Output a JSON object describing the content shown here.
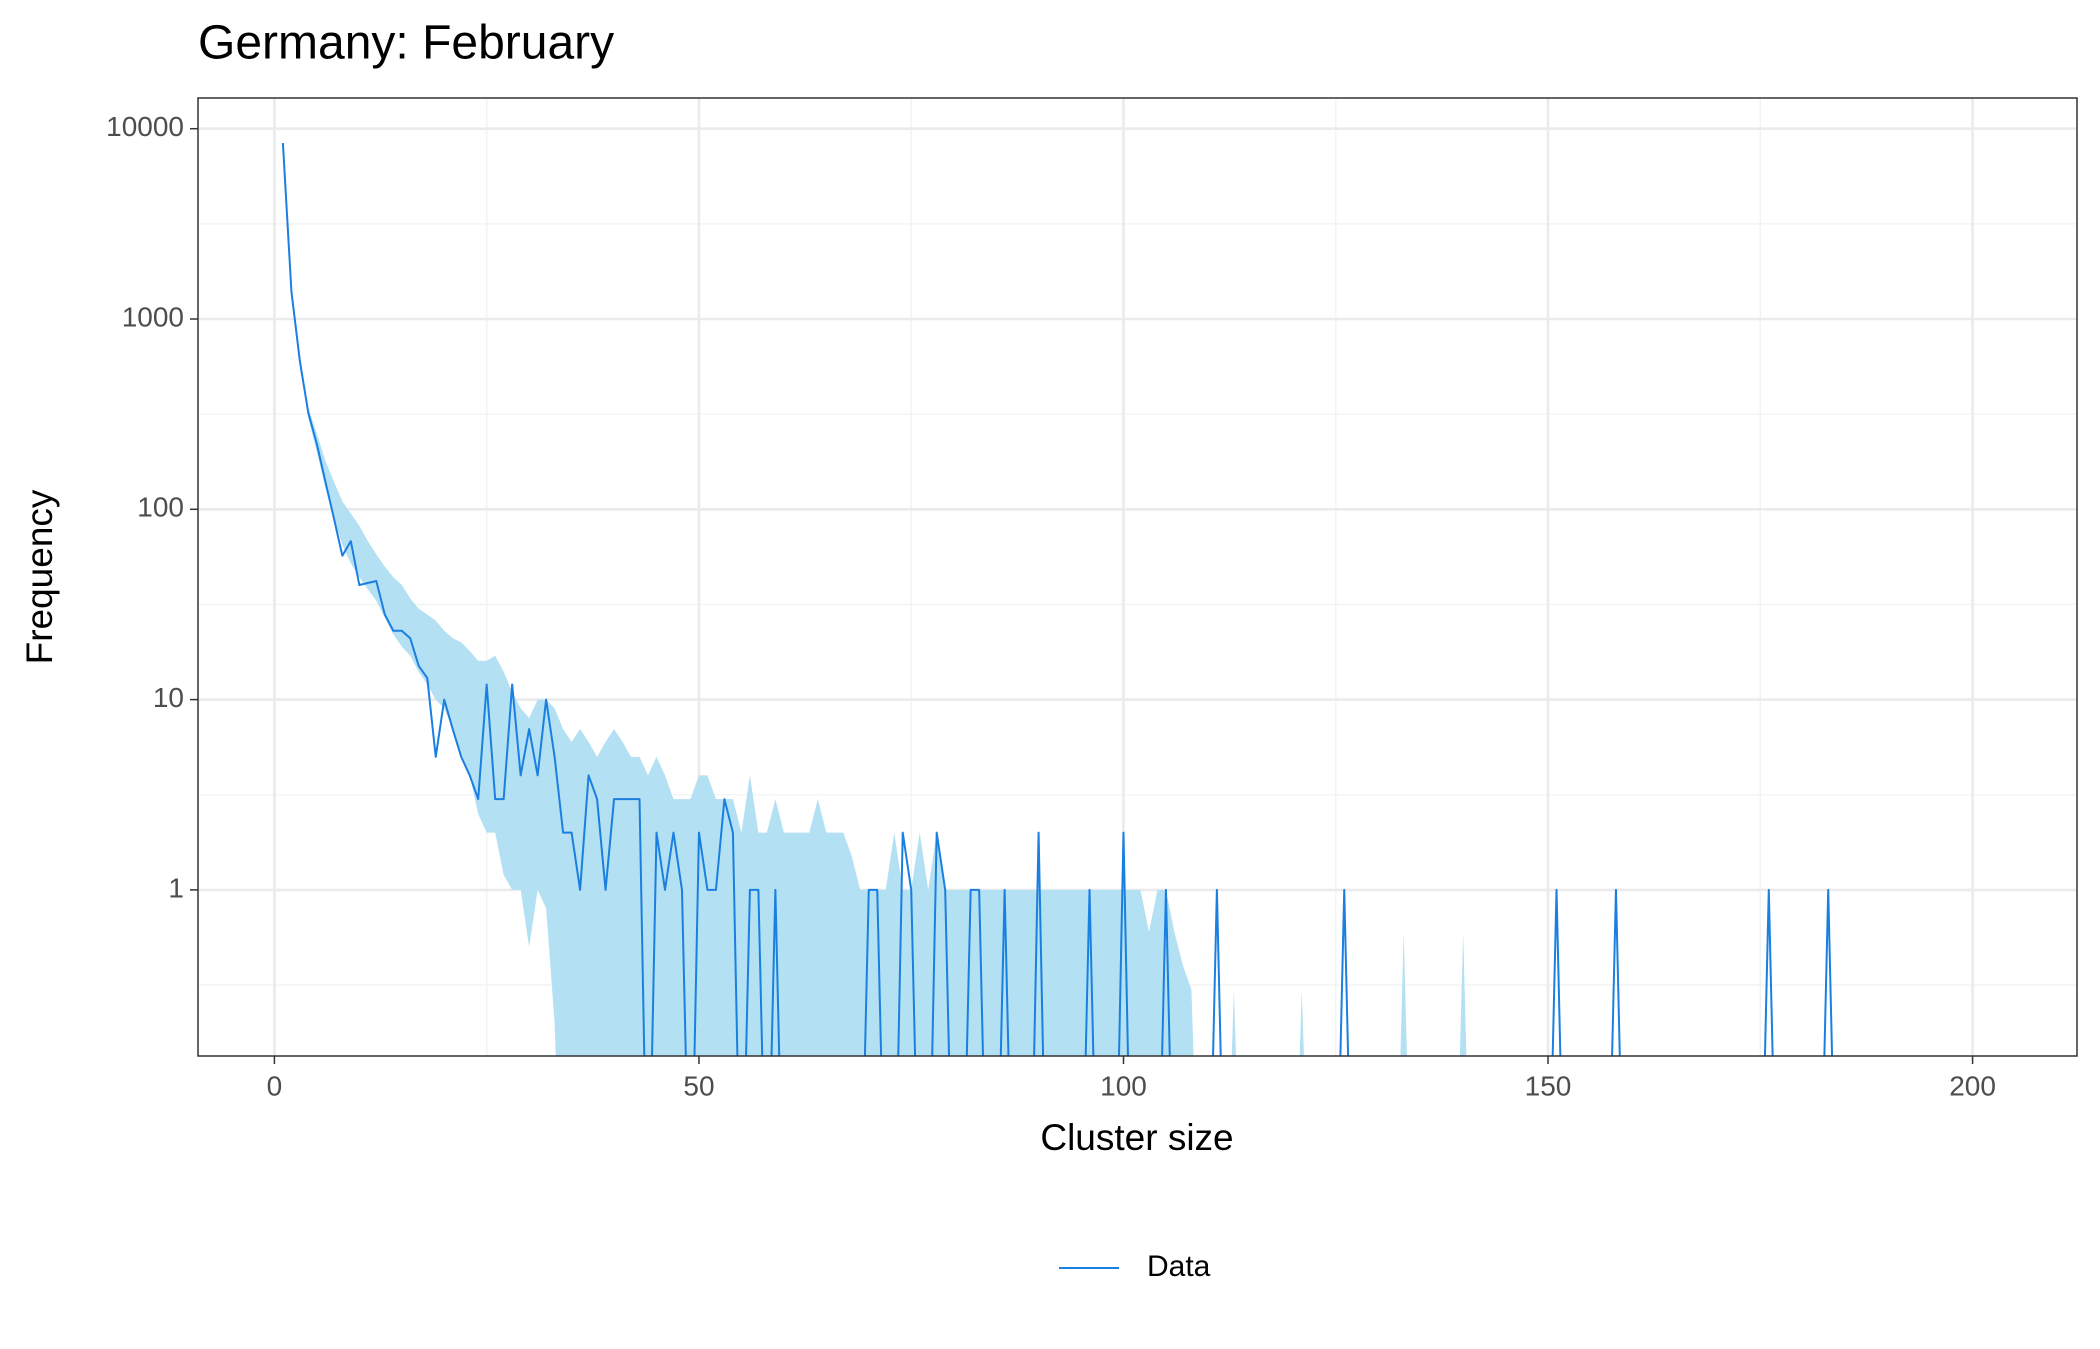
{
  "chart_data": {
    "type": "line",
    "title": "Germany: February",
    "x_label": "Cluster size",
    "y_label": "Frequency",
    "log_y": true,
    "grid": true,
    "legend_position": "bottom",
    "xlim": [
      -9,
      212.3
    ],
    "xticks": [
      0,
      50,
      100,
      150,
      200
    ],
    "ylim": [
      0.134,
      14500
    ],
    "yticks": [
      1,
      10,
      100,
      1000,
      10000
    ],
    "x": [
      1,
      2,
      3,
      4,
      5,
      6,
      7,
      8,
      9,
      10,
      11,
      12,
      13,
      14,
      15,
      16,
      17,
      18,
      19,
      20,
      21,
      22,
      23,
      24,
      25,
      26,
      27,
      28,
      29,
      30,
      31,
      32,
      33,
      34,
      35,
      36,
      37,
      38,
      39,
      40,
      41,
      42,
      43,
      44,
      45,
      46,
      47,
      48,
      49,
      50,
      51,
      52,
      53,
      54,
      55,
      56,
      57,
      58,
      59,
      60,
      61,
      62,
      63,
      64,
      65,
      66,
      67,
      68,
      69,
      70,
      71,
      72,
      73,
      74,
      75,
      76,
      77,
      78,
      79,
      80,
      81,
      82,
      83,
      84,
      85,
      86,
      87,
      88,
      89,
      90,
      91,
      92,
      93,
      94,
      95,
      96,
      97,
      98,
      99,
      100,
      101,
      102,
      103,
      104,
      105,
      106,
      107,
      108,
      109,
      110,
      111,
      112,
      113,
      114,
      115,
      116,
      117,
      118,
      119,
      120,
      121,
      122,
      123,
      124,
      125,
      126,
      127,
      128,
      129,
      130,
      131,
      132,
      133,
      134,
      135,
      136,
      137,
      138,
      139,
      140,
      141,
      142,
      143,
      144,
      145,
      146,
      147,
      148,
      149,
      150,
      151,
      152,
      153,
      154,
      155,
      156,
      157,
      158,
      159,
      160,
      161,
      162,
      163,
      164,
      165,
      166,
      167,
      168,
      169,
      170,
      171,
      172,
      173,
      174,
      175,
      176,
      177,
      178,
      179,
      180,
      181,
      182,
      183,
      184,
      185
    ],
    "series": [
      {
        "name": "Data",
        "color": "#1a7fe0",
        "values": [
          8400,
          1400,
          600,
          320,
          220,
          140,
          90,
          57,
          68,
          40,
          41,
          42,
          28,
          23,
          23,
          21,
          15,
          13,
          5,
          10,
          7,
          5,
          4,
          3,
          12,
          3,
          3,
          12,
          4,
          7,
          4,
          10,
          5,
          2,
          2,
          1,
          4,
          3,
          1,
          3,
          3,
          3,
          3,
          0,
          2,
          1,
          2,
          1,
          0,
          2,
          1,
          1,
          3,
          2,
          0,
          1,
          1,
          0,
          1,
          0,
          0,
          0,
          0,
          0,
          0,
          0,
          0,
          0,
          0,
          1,
          1,
          0,
          0,
          2,
          1,
          0,
          0,
          2,
          1,
          0,
          0,
          1,
          1,
          0,
          0,
          1,
          0,
          0,
          0,
          2,
          0,
          0,
          0,
          0,
          0,
          1,
          0,
          0,
          0,
          2,
          0,
          0,
          0,
          0,
          1,
          0,
          0,
          0,
          0,
          0,
          1,
          0,
          0,
          0,
          0,
          0,
          0,
          0,
          0,
          0,
          0,
          0,
          0,
          0,
          0,
          1,
          0,
          0,
          0,
          0,
          0,
          0,
          0,
          0,
          0,
          0,
          0,
          0,
          0,
          0,
          0,
          0,
          0,
          0,
          0,
          0,
          0,
          0,
          0,
          0,
          1,
          0,
          0,
          0,
          0,
          0,
          0,
          1,
          0,
          0,
          0,
          0,
          0,
          0,
          0,
          0,
          0,
          0,
          0,
          0,
          0,
          0,
          0,
          0,
          0,
          1,
          0,
          0,
          0,
          0,
          0,
          0,
          1,
          0,
          0
        ]
      }
    ],
    "band": {
      "color": "#b3e0f2",
      "upper": [
        8400,
        1450,
        620,
        340,
        250,
        180,
        140,
        110,
        95,
        82,
        68,
        58,
        50,
        44,
        40,
        34,
        30,
        28,
        26,
        23,
        21,
        20,
        18,
        16,
        16,
        17,
        14,
        11,
        9,
        8,
        10,
        10,
        9,
        7,
        6,
        7,
        6,
        5,
        6,
        7,
        6,
        5,
        5,
        4,
        5,
        4,
        3,
        3,
        3,
        4,
        4,
        3,
        3,
        3,
        2,
        4,
        2,
        2,
        3,
        2,
        2,
        2,
        2,
        3,
        2,
        2,
        2,
        1.5,
        1,
        1,
        1,
        1,
        2,
        1,
        1,
        2,
        1,
        2,
        1,
        1,
        1,
        1,
        1,
        1,
        1,
        1,
        1,
        1,
        1,
        1,
        1,
        1,
        1,
        1,
        1,
        1,
        1,
        1,
        1,
        1,
        1,
        1,
        0.6,
        1,
        1,
        0.6,
        0.4,
        0.3,
        0,
        0,
        0,
        0,
        0.3,
        0,
        0,
        0,
        0,
        0,
        0,
        0,
        0.3,
        0,
        0,
        0,
        0,
        0,
        0,
        0,
        0,
        0,
        0,
        0,
        0.6,
        0,
        0,
        0,
        0,
        0,
        0,
        0.6,
        0,
        0,
        0,
        0,
        0,
        0,
        0,
        0,
        0,
        0,
        0,
        0,
        0,
        0,
        0,
        0,
        0,
        0,
        0,
        0,
        0,
        0,
        0,
        0,
        0,
        0,
        0,
        0,
        0,
        0,
        0,
        0,
        0,
        0,
        0,
        0,
        0,
        0,
        0,
        0,
        0,
        0,
        0,
        0,
        0
      ],
      "lower": [
        8400,
        1400,
        560,
        300,
        200,
        130,
        90,
        65,
        52,
        44,
        38,
        33,
        27,
        22,
        19,
        17,
        14,
        12,
        10,
        9,
        7,
        5,
        4,
        2.5,
        2,
        2,
        1.2,
        1,
        1,
        0.5,
        1,
        0.8,
        0.2,
        0,
        0,
        0,
        0,
        0,
        0,
        0,
        0,
        0,
        0,
        0,
        0,
        0,
        0,
        0,
        0,
        0,
        0,
        0,
        0,
        0,
        0,
        0,
        0,
        0,
        0,
        0,
        0,
        0,
        0,
        0,
        0,
        0,
        0,
        0,
        0,
        0,
        0,
        0,
        0,
        0,
        0,
        0,
        0,
        0,
        0,
        0,
        0,
        0,
        0,
        0,
        0,
        0,
        0,
        0,
        0,
        0,
        0,
        0,
        0,
        0,
        0,
        0,
        0,
        0,
        0,
        0,
        0,
        0,
        0,
        0,
        0,
        0,
        0,
        0,
        0,
        0,
        0,
        0,
        0,
        0,
        0,
        0,
        0,
        0,
        0,
        0,
        0,
        0,
        0,
        0,
        0,
        0,
        0,
        0,
        0,
        0,
        0,
        0,
        0,
        0,
        0,
        0,
        0,
        0,
        0,
        0,
        0,
        0,
        0,
        0,
        0,
        0,
        0,
        0,
        0,
        0,
        0,
        0,
        0,
        0,
        0,
        0,
        0,
        0,
        0,
        0,
        0,
        0,
        0,
        0,
        0,
        0,
        0,
        0,
        0,
        0,
        0,
        0,
        0,
        0,
        0,
        0,
        0,
        0,
        0,
        0,
        0,
        0,
        0,
        0,
        0
      ]
    }
  }
}
